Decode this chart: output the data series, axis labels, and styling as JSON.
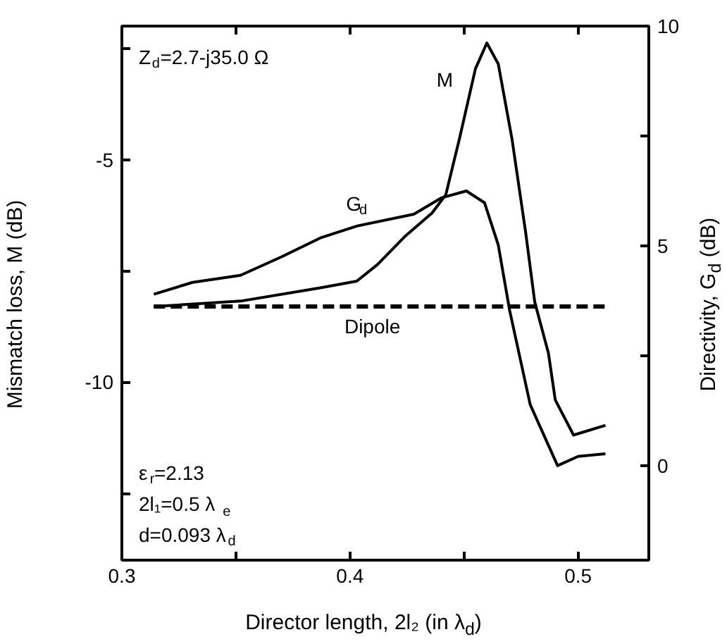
{
  "chart_data": {
    "type": "line",
    "xlabel": "Director length, 2l₂ (in λ$_{d}$)",
    "ylabel": "Mismatch loss, M (dB)",
    "y2label": "Directivity, G$_{d}$ (dB)",
    "xlim": [
      0.3,
      0.531
    ],
    "xticks": [
      0.3,
      {
        "value": 0.35,
        "label": null
      },
      0.4,
      {
        "value": 0.45,
        "label": null
      },
      0.5
    ],
    "ylim": [
      -14,
      -2
    ],
    "yticks": [
      {
        "value": -2.5,
        "label": null
      },
      -5,
      {
        "value": -7.5,
        "label": null
      },
      -10,
      {
        "value": -12.5,
        "label": null
      }
    ],
    "y2lim": [
      -2.15,
      10
    ],
    "y2ticks": [
      0,
      {
        "value": 2.5,
        "label": null
      },
      5,
      {
        "value": 7.5,
        "label": null
      },
      10
    ],
    "grid": false,
    "series": [
      {
        "name": "M",
        "color": "#000000",
        "line_style": "solid",
        "x": [
          0.314,
          0.352,
          0.387,
          0.403,
          0.412,
          0.424,
          0.436,
          0.442,
          0.448,
          0.455,
          0.46,
          0.465,
          0.471,
          0.477,
          0.481,
          0.487,
          0.49,
          0.498,
          0.512
        ],
        "values": [
          -8.3,
          -8.18,
          -7.88,
          -7.73,
          -7.36,
          -6.73,
          -6.2,
          -5.79,
          -4.53,
          -2.96,
          -2.38,
          -2.85,
          -4.53,
          -6.63,
          -8.2,
          -9.35,
          -10.4,
          -11.19,
          -10.97
        ]
      },
      {
        "name": "G$_{d}$",
        "color": "#000000",
        "line_style": "solid",
        "axis": "y2",
        "x": [
          0.314,
          0.331,
          0.352,
          0.37,
          0.387,
          0.403,
          0.428,
          0.44,
          0.451,
          0.459,
          0.465,
          0.47,
          0.479,
          0.491,
          0.5,
          0.512
        ],
        "values": [
          3.9,
          4.17,
          4.33,
          4.75,
          5.18,
          5.45,
          5.72,
          6.09,
          6.25,
          5.98,
          5.02,
          3.53,
          1.39,
          0,
          0.21,
          0.27
        ]
      },
      {
        "name": "Dipole",
        "color": "#000000",
        "line_style": "dashed",
        "x": [
          0.314,
          0.512
        ],
        "values": [
          -8.3,
          -8.3
        ]
      }
    ],
    "annotations": [
      "Z$_{d}$=2.7-j35.0 Ω",
      "ε$_{r}$=2.13",
      "2l₁=0.5 λ$_{e}$",
      "d=0.093 λ$_{d}$"
    ]
  }
}
